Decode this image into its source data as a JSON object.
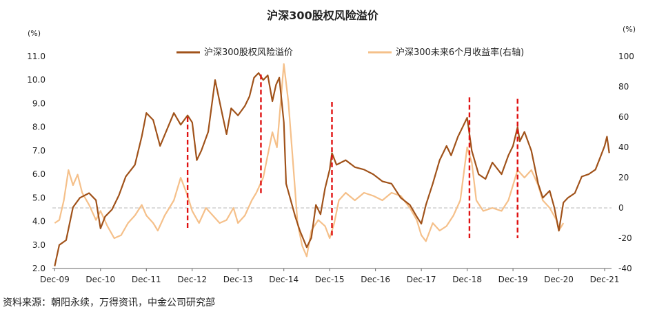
{
  "chart_data": {
    "type": "line",
    "title": "沪深300股权风险溢价",
    "source": "资料来源：朝阳永续，万得资讯，中金公司研究部",
    "left_axis": {
      "unit": "(%)",
      "range": [
        2.0,
        11.0
      ],
      "ticks": [
        "2.0",
        "3.0",
        "4.0",
        "5.0",
        "6.0",
        "7.0",
        "8.0",
        "9.0",
        "10.0",
        "11.0"
      ]
    },
    "right_axis": {
      "unit": "(%)",
      "range": [
        -40,
        100
      ],
      "ticks": [
        "-40",
        "-20",
        "0",
        "20",
        "40",
        "60",
        "80",
        "100"
      ]
    },
    "x_ticks": [
      "Dec-09",
      "Dec-10",
      "Dec-11",
      "Dec-12",
      "Dec-13",
      "Dec-14",
      "Dec-15",
      "Dec-16",
      "Dec-17",
      "Dec-18",
      "Dec-19",
      "Dec-20",
      "Dec-21"
    ],
    "zero_line": 0,
    "colors": {
      "erp": "#a0521a",
      "ret": "#f5c08a",
      "vline": "#e01010",
      "zero": "#c8c8c8"
    },
    "series": [
      {
        "name": "沪深300股权风险溢价",
        "axis": "left",
        "color": "#a0521a",
        "points": [
          [
            2009.95,
            2.1
          ],
          [
            2010.05,
            3.0
          ],
          [
            2010.2,
            3.2
          ],
          [
            2010.35,
            4.6
          ],
          [
            2010.5,
            5.0
          ],
          [
            2010.7,
            5.2
          ],
          [
            2010.85,
            4.9
          ],
          [
            2010.95,
            3.7
          ],
          [
            2011.05,
            4.2
          ],
          [
            2011.2,
            4.5
          ],
          [
            2011.35,
            5.1
          ],
          [
            2011.5,
            5.9
          ],
          [
            2011.7,
            6.4
          ],
          [
            2011.85,
            7.6
          ],
          [
            2011.95,
            8.6
          ],
          [
            2012.1,
            8.3
          ],
          [
            2012.25,
            7.2
          ],
          [
            2012.4,
            7.9
          ],
          [
            2012.55,
            8.6
          ],
          [
            2012.7,
            8.1
          ],
          [
            2012.85,
            8.5
          ],
          [
            2012.95,
            8.2
          ],
          [
            2013.05,
            6.6
          ],
          [
            2013.15,
            7.0
          ],
          [
            2013.3,
            7.8
          ],
          [
            2013.45,
            10.0
          ],
          [
            2013.6,
            8.6
          ],
          [
            2013.7,
            7.7
          ],
          [
            2013.8,
            8.8
          ],
          [
            2013.95,
            8.5
          ],
          [
            2014.1,
            8.9
          ],
          [
            2014.2,
            9.3
          ],
          [
            2014.3,
            10.1
          ],
          [
            2014.4,
            10.3
          ],
          [
            2014.5,
            10.0
          ],
          [
            2014.6,
            10.2
          ],
          [
            2014.7,
            9.1
          ],
          [
            2014.78,
            9.8
          ],
          [
            2014.85,
            10.1
          ],
          [
            2014.95,
            8.2
          ],
          [
            2015.0,
            5.6
          ],
          [
            2015.1,
            4.9
          ],
          [
            2015.2,
            4.2
          ],
          [
            2015.3,
            3.6
          ],
          [
            2015.45,
            2.9
          ],
          [
            2015.55,
            3.3
          ],
          [
            2015.65,
            4.7
          ],
          [
            2015.75,
            4.3
          ],
          [
            2015.85,
            5.4
          ],
          [
            2015.95,
            6.2
          ],
          [
            2016.0,
            6.9
          ],
          [
            2016.1,
            6.4
          ],
          [
            2016.3,
            6.6
          ],
          [
            2016.5,
            6.3
          ],
          [
            2016.7,
            6.2
          ],
          [
            2016.9,
            6.0
          ],
          [
            2017.1,
            5.7
          ],
          [
            2017.3,
            5.6
          ],
          [
            2017.5,
            5.0
          ],
          [
            2017.7,
            4.7
          ],
          [
            2017.85,
            4.2
          ],
          [
            2017.95,
            3.9
          ],
          [
            2018.05,
            4.7
          ],
          [
            2018.2,
            5.6
          ],
          [
            2018.35,
            6.6
          ],
          [
            2018.5,
            7.2
          ],
          [
            2018.6,
            6.8
          ],
          [
            2018.75,
            7.6
          ],
          [
            2018.85,
            8.0
          ],
          [
            2018.95,
            8.4
          ],
          [
            2019.05,
            7.0
          ],
          [
            2019.2,
            6.0
          ],
          [
            2019.35,
            5.8
          ],
          [
            2019.5,
            6.5
          ],
          [
            2019.7,
            6.0
          ],
          [
            2019.85,
            6.8
          ],
          [
            2019.95,
            7.2
          ],
          [
            2020.05,
            8.0
          ],
          [
            2020.1,
            7.4
          ],
          [
            2020.2,
            7.8
          ],
          [
            2020.35,
            7.0
          ],
          [
            2020.5,
            5.6
          ],
          [
            2020.6,
            5.0
          ],
          [
            2020.75,
            5.3
          ],
          [
            2020.85,
            4.6
          ],
          [
            2020.95,
            3.6
          ],
          [
            2021.05,
            4.8
          ],
          [
            2021.15,
            5.0
          ],
          [
            2021.3,
            5.2
          ],
          [
            2021.45,
            5.9
          ],
          [
            2021.6,
            6.0
          ],
          [
            2021.75,
            6.2
          ],
          [
            2021.85,
            6.7
          ],
          [
            2021.95,
            7.2
          ],
          [
            2022.0,
            7.6
          ],
          [
            2022.05,
            6.9
          ]
        ]
      },
      {
        "name": "沪深300未来6个月收益率(右轴)",
        "axis": "right",
        "color": "#f5c08a",
        "points": [
          [
            2009.95,
            -10
          ],
          [
            2010.05,
            -8
          ],
          [
            2010.15,
            5
          ],
          [
            2010.25,
            25
          ],
          [
            2010.35,
            15
          ],
          [
            2010.45,
            22
          ],
          [
            2010.55,
            10
          ],
          [
            2010.7,
            2
          ],
          [
            2010.85,
            -8
          ],
          [
            2010.95,
            -2
          ],
          [
            2011.1,
            -12
          ],
          [
            2011.25,
            -20
          ],
          [
            2011.4,
            -18
          ],
          [
            2011.55,
            -10
          ],
          [
            2011.7,
            -5
          ],
          [
            2011.85,
            2
          ],
          [
            2011.95,
            -5
          ],
          [
            2012.1,
            -10
          ],
          [
            2012.2,
            -15
          ],
          [
            2012.35,
            -5
          ],
          [
            2012.55,
            5
          ],
          [
            2012.7,
            20
          ],
          [
            2012.85,
            8
          ],
          [
            2012.95,
            -2
          ],
          [
            2013.1,
            -10
          ],
          [
            2013.25,
            0
          ],
          [
            2013.4,
            -5
          ],
          [
            2013.55,
            -10
          ],
          [
            2013.7,
            -8
          ],
          [
            2013.85,
            0
          ],
          [
            2013.95,
            -10
          ],
          [
            2014.1,
            -5
          ],
          [
            2014.25,
            5
          ],
          [
            2014.35,
            10
          ],
          [
            2014.5,
            20
          ],
          [
            2014.6,
            35
          ],
          [
            2014.7,
            50
          ],
          [
            2014.8,
            40
          ],
          [
            2014.95,
            95
          ],
          [
            2015.05,
            70
          ],
          [
            2015.15,
            30
          ],
          [
            2015.25,
            -10
          ],
          [
            2015.35,
            -25
          ],
          [
            2015.45,
            -32
          ],
          [
            2015.55,
            -15
          ],
          [
            2015.7,
            -8
          ],
          [
            2015.85,
            -12
          ],
          [
            2015.95,
            -20
          ],
          [
            2016.05,
            -10
          ],
          [
            2016.15,
            5
          ],
          [
            2016.3,
            10
          ],
          [
            2016.5,
            5
          ],
          [
            2016.7,
            10
          ],
          [
            2016.9,
            8
          ],
          [
            2017.1,
            5
          ],
          [
            2017.3,
            10
          ],
          [
            2017.5,
            8
          ],
          [
            2017.7,
            0
          ],
          [
            2017.85,
            -8
          ],
          [
            2017.95,
            -18
          ],
          [
            2018.05,
            -22
          ],
          [
            2018.2,
            -10
          ],
          [
            2018.35,
            -15
          ],
          [
            2018.5,
            -12
          ],
          [
            2018.65,
            -5
          ],
          [
            2018.8,
            5
          ],
          [
            2018.95,
            40
          ],
          [
            2019.05,
            30
          ],
          [
            2019.15,
            5
          ],
          [
            2019.3,
            -2
          ],
          [
            2019.5,
            0
          ],
          [
            2019.7,
            -2
          ],
          [
            2019.85,
            5
          ],
          [
            2019.95,
            15
          ],
          [
            2020.05,
            25
          ],
          [
            2020.2,
            20
          ],
          [
            2020.35,
            25
          ],
          [
            2020.5,
            15
          ],
          [
            2020.6,
            5
          ],
          [
            2020.75,
            0
          ],
          [
            2020.9,
            -8
          ],
          [
            2020.95,
            -15
          ],
          [
            2021.05,
            -10
          ]
        ]
      }
    ],
    "markers": [
      2012.85,
      2014.45,
      2016.0,
      2019.0,
      2020.05
    ],
    "marker_ranges": [
      [
        -15,
        60
      ],
      [
        8,
        88
      ],
      [
        -20,
        70
      ],
      [
        -20,
        73
      ],
      [
        -20,
        72
      ]
    ]
  }
}
